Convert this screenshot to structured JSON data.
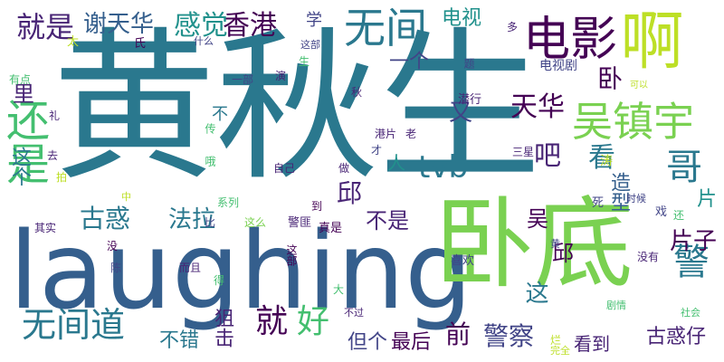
{
  "palette": [
    "#440154",
    "#482475",
    "#414487",
    "#355f8d",
    "#2a788e",
    "#21918c",
    "#22a884",
    "#44bf70",
    "#7ad151",
    "#bddf26",
    "#fde725"
  ],
  "words": [
    {
      "text": "黄秋生",
      "color": "#2a788e"
    },
    {
      "text": "laughing",
      "color": "#355f8d"
    },
    {
      "text": "卧底",
      "color": "#7ad151"
    },
    {
      "text": "啊",
      "color": "#bddf26"
    },
    {
      "text": "电影",
      "color": "#440154"
    },
    {
      "text": "吴镇宇",
      "color": "#7ad151"
    },
    {
      "text": "还是",
      "color": "#44bf70"
    },
    {
      "text": "无间",
      "color": "#2a788e"
    },
    {
      "text": "香港",
      "color": "#440154"
    },
    {
      "text": "感觉",
      "color": "#21918c"
    },
    {
      "text": "就是",
      "color": "#482475"
    },
    {
      "text": "谢天华",
      "color": "#355f8d"
    },
    {
      "text": "无间道",
      "color": "#2a788e"
    },
    {
      "text": "好",
      "color": "#44bf70"
    },
    {
      "text": "就",
      "color": "#440154"
    },
    {
      "text": "警",
      "color": "#2a788e"
    },
    {
      "text": "哥",
      "color": "#2a788e"
    },
    {
      "text": "tvb",
      "color": "#2a788e"
    },
    {
      "text": "电视",
      "color": "#21918c"
    },
    {
      "text": "学",
      "color": "#414487"
    },
    {
      "text": "里",
      "color": "#482475"
    },
    {
      "text": "天华",
      "color": "#440154"
    },
    {
      "text": "看",
      "color": "#2a788e"
    },
    {
      "text": "吧",
      "color": "#482475"
    },
    {
      "text": "一个",
      "color": "#414487"
    },
    {
      "text": "卧",
      "color": "#440154"
    },
    {
      "text": "邱",
      "color": "#482475"
    },
    {
      "text": "又",
      "color": "#414487"
    },
    {
      "text": "这个",
      "color": "#2a788e"
    },
    {
      "text": "古惑",
      "color": "#2a788e"
    },
    {
      "text": "法拉",
      "color": "#2a788e"
    },
    {
      "text": "邱",
      "color": "#440154"
    },
    {
      "text": "人",
      "color": "#21918c"
    },
    {
      "text": "造型",
      "color": "#355f8d"
    },
    {
      "text": "不是",
      "color": "#482475"
    },
    {
      "text": "警察",
      "color": "#414487"
    },
    {
      "text": "前",
      "color": "#440154"
    },
    {
      "text": "这",
      "color": "#2a788e"
    },
    {
      "text": "片子",
      "color": "#440154"
    },
    {
      "text": "吴",
      "color": "#440154"
    },
    {
      "text": "片",
      "color": "#21918c"
    },
    {
      "text": "古惑仔",
      "color": "#482475"
    },
    {
      "text": "狙击",
      "color": "#482475"
    },
    {
      "text": "不错",
      "color": "#2a788e"
    },
    {
      "text": "但个",
      "color": "#414487"
    },
    {
      "text": "最后",
      "color": "#440154"
    },
    {
      "text": "看到",
      "color": "#482475"
    },
    {
      "text": "电视剧",
      "color": "#414487"
    },
    {
      "text": "潜行",
      "color": "#482475"
    },
    {
      "text": "三星",
      "color": "#482475"
    },
    {
      "text": "真是",
      "color": "#440154"
    },
    {
      "text": "警匪",
      "color": "#482475"
    },
    {
      "text": "喜欢",
      "color": "#414487"
    },
    {
      "text": "没有",
      "color": "#482475"
    },
    {
      "text": "剧情",
      "color": "#44bf70"
    },
    {
      "text": "社会",
      "color": "#44bf70"
    },
    {
      "text": "不过",
      "color": "#482475"
    },
    {
      "text": "时候",
      "color": "#414487"
    },
    {
      "text": "戏",
      "color": "#414487"
    },
    {
      "text": "还",
      "color": "#44bf70"
    },
    {
      "text": "死",
      "color": "#414487"
    },
    {
      "text": "黄",
      "color": "#414487"
    },
    {
      "text": "可以",
      "color": "#bddf26"
    },
    {
      "text": "演",
      "color": "#482475"
    },
    {
      "text": "氏",
      "color": "#440154"
    },
    {
      "text": "什么",
      "color": "#414487"
    },
    {
      "text": "这部",
      "color": "#414487"
    },
    {
      "text": "多",
      "color": "#482475"
    },
    {
      "text": "太",
      "color": "#bddf26"
    },
    {
      "text": "有点",
      "color": "#44bf70"
    },
    {
      "text": "一部",
      "color": "#414487"
    },
    {
      "text": "生",
      "color": "#44bf70"
    },
    {
      "text": "题",
      "color": "#414487"
    },
    {
      "text": "秋",
      "color": "#482475"
    },
    {
      "text": "礼",
      "color": "#482475"
    },
    {
      "text": "去",
      "color": "#482475"
    },
    {
      "text": "拍",
      "color": "#bddf26"
    },
    {
      "text": "其实",
      "color": "#482475"
    },
    {
      "text": "没",
      "color": "#440154"
    },
    {
      "text": "陈",
      "color": "#414487"
    },
    {
      "text": "而且",
      "color": "#482475"
    },
    {
      "text": "得",
      "color": "#44bf70"
    },
    {
      "text": "大",
      "color": "#44bf70"
    },
    {
      "text": "这部",
      "color": "#440154"
    },
    {
      "text": "自己",
      "color": "#482475"
    },
    {
      "text": "做",
      "color": "#482475"
    },
    {
      "text": "才",
      "color": "#414487"
    },
    {
      "text": "传",
      "color": "#44bf70"
    },
    {
      "text": "港片",
      "color": "#482475"
    },
    {
      "text": "老",
      "color": "#482475"
    },
    {
      "text": "到",
      "color": "#440154"
    },
    {
      "text": "中",
      "color": "#bddf26"
    },
    {
      "text": "系列",
      "color": "#44bf70"
    },
    {
      "text": "这么",
      "color": "#7ad151"
    },
    {
      "text": "比",
      "color": "#414487"
    },
    {
      "text": "哦",
      "color": "#44bf70"
    },
    {
      "text": "涛",
      "color": "#bddf26"
    },
    {
      "text": "烂",
      "color": "#bddf26"
    },
    {
      "text": "完全",
      "color": "#bddf26"
    },
    {
      "text": "不",
      "color": "#2a788e"
    }
  ]
}
